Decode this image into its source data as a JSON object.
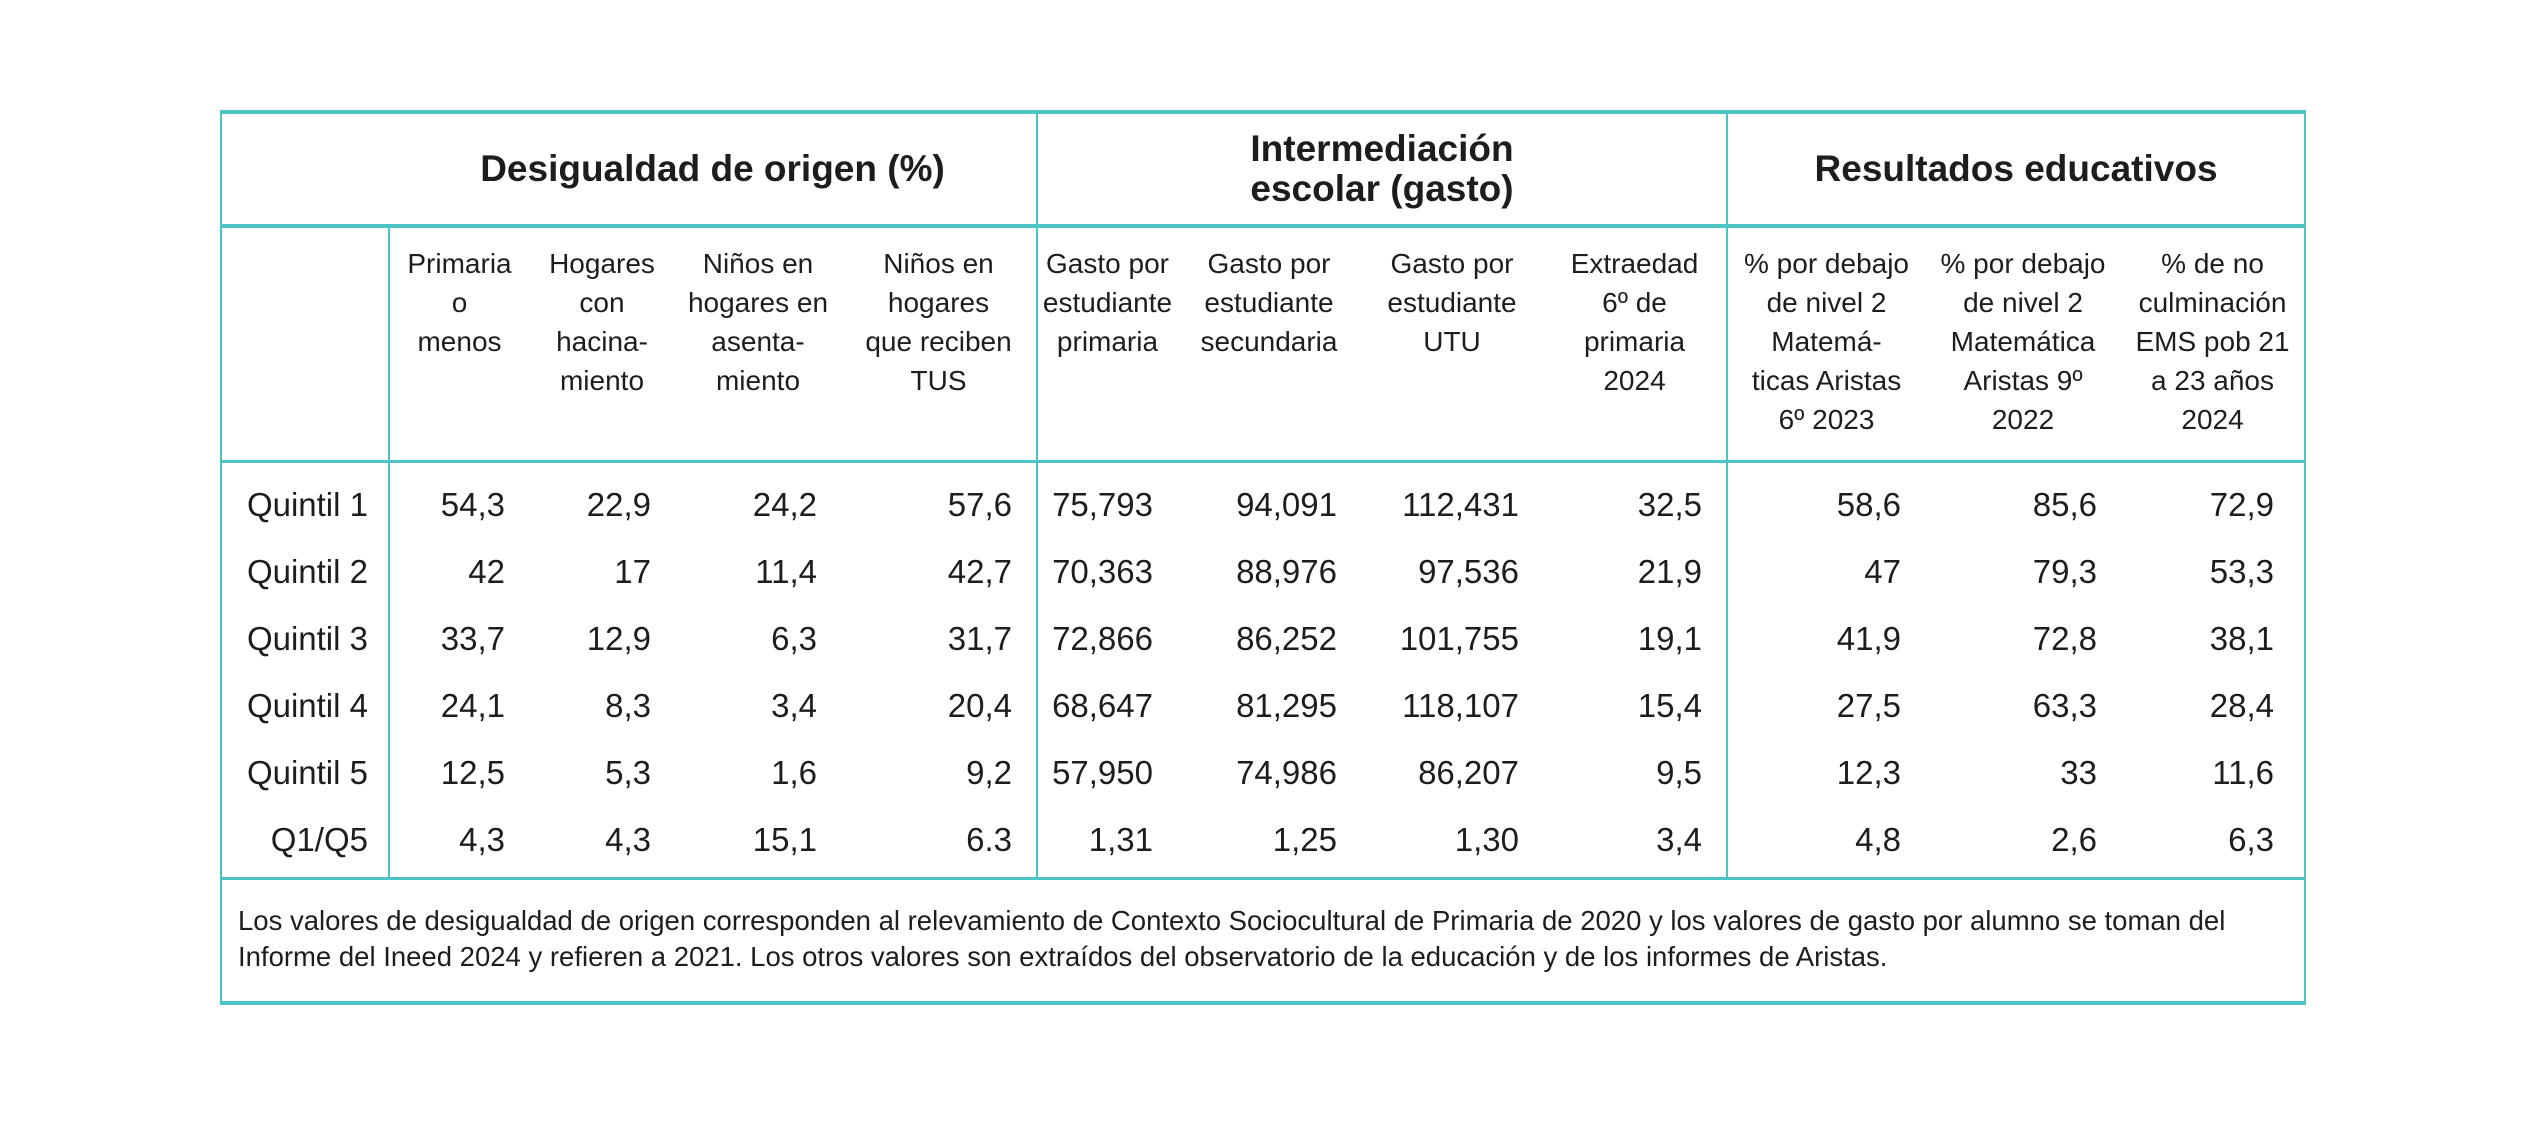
{
  "groups": {
    "origin": "Desigualdad de origen (%)",
    "intermediation_line1": "Intermediación",
    "intermediation_line2": "escolar (gasto)",
    "results": "Resultados educativos"
  },
  "columns": [
    "Primaria\no\nmenos",
    "Hogares\ncon\nhacina-\nmiento",
    "Niños en\nhogares en\nasenta-\nmiento",
    "Niños en\nhogares\nque reciben\nTUS",
    "Gasto por\nestudiante\nprimaria",
    "Gasto por\nestudiante\nsecundaria",
    "Gasto por\nestudiante\nUTU",
    "Extraedad\n6º de\nprimaria\n2024",
    "% por debajo\nde nivel 2\nMatemá-\nticas Aristas\n6º 2023",
    "% por debajo\nde nivel 2\nMatemática\nAristas 9º\n2022",
    "%  de no\nculminación\nEMS pob 21\na 23 años\n2024"
  ],
  "rows": [
    {
      "label": "Quintil 1",
      "values": [
        "54,3",
        "22,9",
        "24,2",
        "57,6",
        "75,793",
        "94,091",
        "112,431",
        "32,5",
        "58,6",
        "85,6",
        "72,9"
      ]
    },
    {
      "label": "Quintil 2",
      "values": [
        "42",
        "17",
        "11,4",
        "42,7",
        "70,363",
        "88,976",
        "97,536",
        "21,9",
        "47",
        "79,3",
        "53,3"
      ]
    },
    {
      "label": "Quintil 3",
      "values": [
        "33,7",
        "12,9",
        "6,3",
        "31,7",
        "72,866",
        "86,252",
        "101,755",
        "19,1",
        "41,9",
        "72,8",
        "38,1"
      ]
    },
    {
      "label": "Quintil 4",
      "values": [
        "24,1",
        "8,3",
        "3,4",
        "20,4",
        "68,647",
        "81,295",
        "118,107",
        "15,4",
        "27,5",
        "63,3",
        "28,4"
      ]
    },
    {
      "label": "Quintil 5",
      "values": [
        "12,5",
        "5,3",
        "1,6",
        "9,2",
        "57,950",
        "74,986",
        "86,207",
        "9,5",
        "12,3",
        "33",
        "11,6"
      ]
    },
    {
      "label": "Q1/Q5",
      "values": [
        "4,3",
        "4,3",
        "15,1",
        "6.3",
        "1,31",
        "1,25",
        "1,30",
        "3,4",
        "4,8",
        "2,6",
        "6,3"
      ]
    }
  ],
  "note": "Los valores de desigualdad de origen corresponden al relevamiento de Contexto Sociocultural de Primaria de 2020 y los valores de gasto por alumno se toman del Informe del Ineed 2024 y refieren a 2021. Los otros valores son extraídos del observatorio de la educación y de los informes de Aristas.",
  "colors": {
    "accent": "#4cc3c5",
    "text": "#1d1d1b"
  }
}
